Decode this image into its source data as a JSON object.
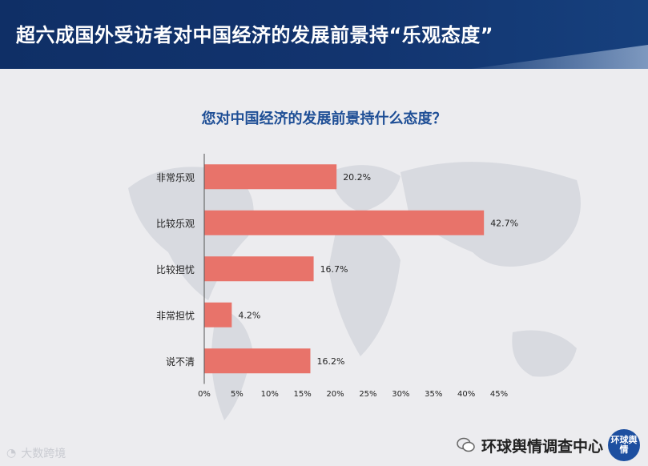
{
  "header": {
    "title": "超六成国外受访者对中国经济的发展前景持“乐观态度”"
  },
  "chart_data": {
    "type": "bar",
    "orientation": "horizontal",
    "title": "您对中国经济的发展前景持什么态度？",
    "categories": [
      "非常乐观",
      "比较乐观",
      "比较担忧",
      "非常担忧",
      "说不清"
    ],
    "values": [
      20.2,
      42.7,
      16.7,
      4.2,
      16.2
    ],
    "value_labels": [
      "20.2%",
      "42.7%",
      "16.7%",
      "4.2%",
      "16.2%"
    ],
    "xlim": [
      0,
      45
    ],
    "x_ticks": [
      "0%",
      "5%",
      "10%",
      "15%",
      "20%",
      "25%",
      "30%",
      "35%",
      "40%",
      "45%"
    ],
    "bar_color": "#e8736a",
    "grid": false
  },
  "footer": {
    "left_brand": "大数跨境",
    "right_brand": "环球舆情调查中心",
    "badge_text": "环球舆情"
  },
  "colors": {
    "header": "#12346f",
    "title": "#1f4f96",
    "bar": "#e8736a"
  }
}
